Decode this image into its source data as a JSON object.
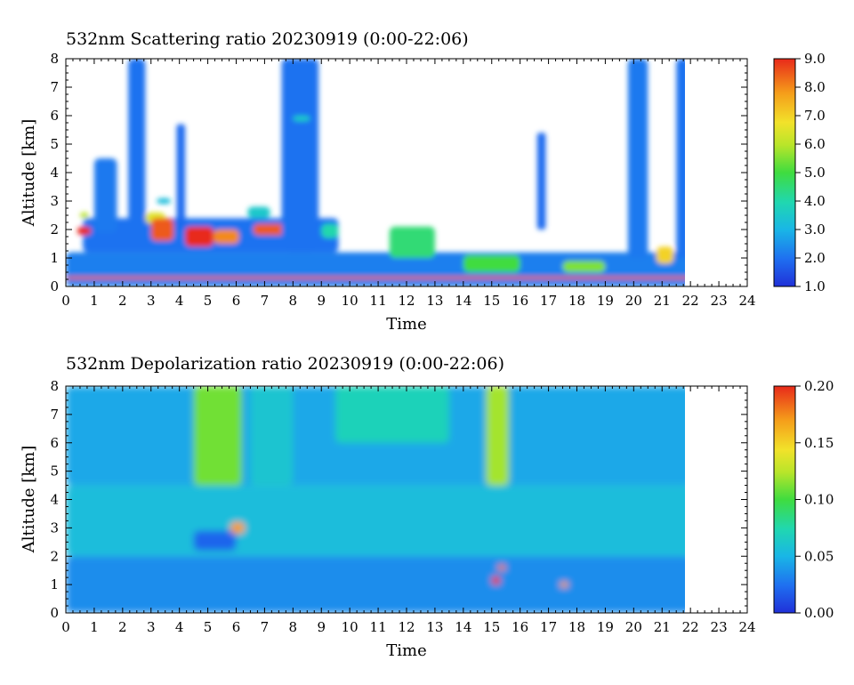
{
  "chart_data": [
    {
      "type": "heatmap",
      "title": "532nm Scattering ratio  20230919 (0:00-22:06)",
      "xlabel": "Time",
      "ylabel": "Altitude [km]",
      "xlim": [
        0,
        24
      ],
      "ylim": [
        0,
        8
      ],
      "x_ticks": [
        "0",
        "1",
        "2",
        "3",
        "4",
        "5",
        "6",
        "7",
        "8",
        "9",
        "10",
        "11",
        "12",
        "13",
        "14",
        "15",
        "16",
        "17",
        "18",
        "19",
        "20",
        "21",
        "22",
        "23",
        "24"
      ],
      "y_ticks": [
        "0",
        "1",
        "2",
        "3",
        "4",
        "5",
        "6",
        "7",
        "8"
      ],
      "data_end_time": 22.1,
      "colorbar": {
        "min": 1.0,
        "max": 9.0,
        "ticks": [
          "1.0",
          "2.0",
          "3.0",
          "4.0",
          "5.0",
          "6.0",
          "7.0",
          "8.0",
          "9.0"
        ]
      },
      "features": [
        {
          "t0": 0.0,
          "t1": 22.1,
          "z0": 0.0,
          "z1": 1.2,
          "value": 2.2
        },
        {
          "t0": 0.0,
          "t1": 22.1,
          "z0": 0.25,
          "z1": 0.35,
          "value": 8.5
        },
        {
          "t0": 0.6,
          "t1": 9.6,
          "z0": 1.2,
          "z1": 2.4,
          "value": 2.0
        },
        {
          "t0": 0.4,
          "t1": 0.9,
          "z0": 1.8,
          "z1": 2.1,
          "value": 9.0
        },
        {
          "t0": 0.5,
          "t1": 0.8,
          "z0": 2.4,
          "z1": 2.6,
          "value": 6.0
        },
        {
          "t0": 1.0,
          "t1": 1.8,
          "z0": 1.9,
          "z1": 4.5,
          "value": 2.1
        },
        {
          "t0": 2.2,
          "t1": 2.8,
          "z0": 1.5,
          "z1": 8.0,
          "value": 2.0
        },
        {
          "t0": 2.8,
          "t1": 3.5,
          "z0": 2.2,
          "z1": 2.6,
          "value": 6.5
        },
        {
          "t0": 3.2,
          "t1": 3.7,
          "z0": 2.9,
          "z1": 3.1,
          "value": 3.2
        },
        {
          "t0": 3.0,
          "t1": 3.8,
          "z0": 1.6,
          "z1": 2.4,
          "value": 8.5
        },
        {
          "t0": 3.9,
          "t1": 4.2,
          "z0": 2.0,
          "z1": 5.7,
          "value": 1.9
        },
        {
          "t0": 4.2,
          "t1": 5.2,
          "z0": 1.4,
          "z1": 2.1,
          "value": 9.0
        },
        {
          "t0": 5.2,
          "t1": 6.1,
          "z0": 1.5,
          "z1": 2.0,
          "value": 8.0
        },
        {
          "t0": 6.4,
          "t1": 7.2,
          "z0": 2.4,
          "z1": 2.8,
          "value": 3.5
        },
        {
          "t0": 6.6,
          "t1": 8.0,
          "z0": 1.8,
          "z1": 2.2,
          "value": 8.5
        },
        {
          "t0": 7.6,
          "t1": 8.9,
          "z0": 1.2,
          "z1": 8.0,
          "value": 2.0
        },
        {
          "t0": 8.0,
          "t1": 8.6,
          "z0": 5.8,
          "z1": 6.0,
          "value": 3.6
        },
        {
          "t0": 9.0,
          "t1": 9.6,
          "z0": 1.7,
          "z1": 2.2,
          "value": 4.0
        },
        {
          "t0": 11.4,
          "t1": 13.0,
          "z0": 1.0,
          "z1": 2.1,
          "value": 4.5
        },
        {
          "t0": 14.0,
          "t1": 16.0,
          "z0": 0.5,
          "z1": 1.1,
          "value": 5.0
        },
        {
          "t0": 16.6,
          "t1": 16.9,
          "z0": 2.0,
          "z1": 5.4,
          "value": 1.9
        },
        {
          "t0": 17.5,
          "t1": 19.0,
          "z0": 0.5,
          "z1": 0.9,
          "value": 5.5
        },
        {
          "t0": 19.8,
          "t1": 20.5,
          "z0": 1.0,
          "z1": 8.0,
          "value": 2.1
        },
        {
          "t0": 20.8,
          "t1": 21.4,
          "z0": 0.8,
          "z1": 1.4,
          "value": 7.0
        },
        {
          "t0": 21.5,
          "t1": 22.0,
          "z0": 1.0,
          "z1": 8.0,
          "value": 2.0
        }
      ]
    },
    {
      "type": "heatmap",
      "title": "532nm Depolarization ratio  20230919 (0:00-22:06)",
      "xlabel": "Time",
      "ylabel": "Altitude [km]",
      "xlim": [
        0,
        24
      ],
      "ylim": [
        0,
        8
      ],
      "x_ticks": [
        "0",
        "1",
        "2",
        "3",
        "4",
        "5",
        "6",
        "7",
        "8",
        "9",
        "10",
        "11",
        "12",
        "13",
        "14",
        "15",
        "16",
        "17",
        "18",
        "19",
        "20",
        "21",
        "22",
        "23",
        "24"
      ],
      "y_ticks": [
        "0",
        "1",
        "2",
        "3",
        "4",
        "5",
        "6",
        "7",
        "8"
      ],
      "data_end_time": 22.1,
      "colorbar": {
        "min": 0.0,
        "max": 0.2,
        "ticks": [
          "0.00",
          "0.05",
          "0.10",
          "0.15",
          "0.20"
        ]
      },
      "features": [
        {
          "t0": 0.0,
          "t1": 22.1,
          "z0": 0.0,
          "z1": 2.0,
          "value": 0.035
        },
        {
          "t0": 0.0,
          "t1": 22.1,
          "z0": 2.0,
          "z1": 4.5,
          "value": 0.055
        },
        {
          "t0": 0.0,
          "t1": 22.1,
          "z0": 4.5,
          "z1": 8.0,
          "value": 0.045
        },
        {
          "t0": 4.5,
          "t1": 6.2,
          "z0": 4.5,
          "z1": 8.0,
          "value": 0.11
        },
        {
          "t0": 4.5,
          "t1": 6.0,
          "z0": 2.2,
          "z1": 2.9,
          "value": 0.02
        },
        {
          "t0": 6.5,
          "t1": 8.0,
          "z0": 4.5,
          "z1": 8.0,
          "value": 0.06
        },
        {
          "t0": 9.5,
          "t1": 13.5,
          "z0": 6.0,
          "z1": 8.0,
          "value": 0.07
        },
        {
          "t0": 14.8,
          "t1": 15.6,
          "z0": 4.5,
          "z1": 8.0,
          "value": 0.12
        },
        {
          "t0": 15.0,
          "t1": 15.3,
          "z0": 1.0,
          "z1": 1.3,
          "value": 0.2
        },
        {
          "t0": 15.2,
          "t1": 15.5,
          "z0": 1.5,
          "z1": 1.7,
          "value": 0.18
        },
        {
          "t0": 17.4,
          "t1": 17.7,
          "z0": 0.9,
          "z1": 1.1,
          "value": 0.17
        },
        {
          "t0": 5.8,
          "t1": 6.3,
          "z0": 2.8,
          "z1": 3.2,
          "value": 0.17
        }
      ]
    }
  ]
}
